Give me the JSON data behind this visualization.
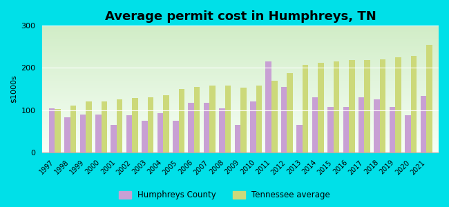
{
  "title": "Average permit cost in Humphreys, TN",
  "ylabel": "$1000s",
  "years": [
    1997,
    1998,
    1999,
    2000,
    2001,
    2002,
    2003,
    2004,
    2005,
    2006,
    2007,
    2008,
    2009,
    2010,
    2011,
    2012,
    2013,
    2014,
    2015,
    2016,
    2017,
    2018,
    2019,
    2020,
    2021
  ],
  "humphreys": [
    105,
    83,
    90,
    90,
    65,
    88,
    75,
    92,
    75,
    118,
    118,
    105,
    65,
    120,
    215,
    155,
    65,
    130,
    108,
    108,
    130,
    125,
    108,
    88,
    133
  ],
  "tennessee": [
    103,
    110,
    120,
    120,
    125,
    128,
    130,
    135,
    150,
    155,
    158,
    158,
    153,
    158,
    170,
    188,
    207,
    212,
    215,
    218,
    218,
    220,
    225,
    228,
    255
  ],
  "humphreys_color": "#c8a0d4",
  "tennessee_color": "#ccd97a",
  "outer_background": "#00e0e8",
  "ylim": [
    0,
    300
  ],
  "yticks": [
    0,
    100,
    200,
    300
  ],
  "bar_width": 0.38,
  "legend_humphreys": "Humphreys County",
  "legend_tennessee": "Tennessee average",
  "title_fontsize": 13,
  "axis_fontsize": 8
}
